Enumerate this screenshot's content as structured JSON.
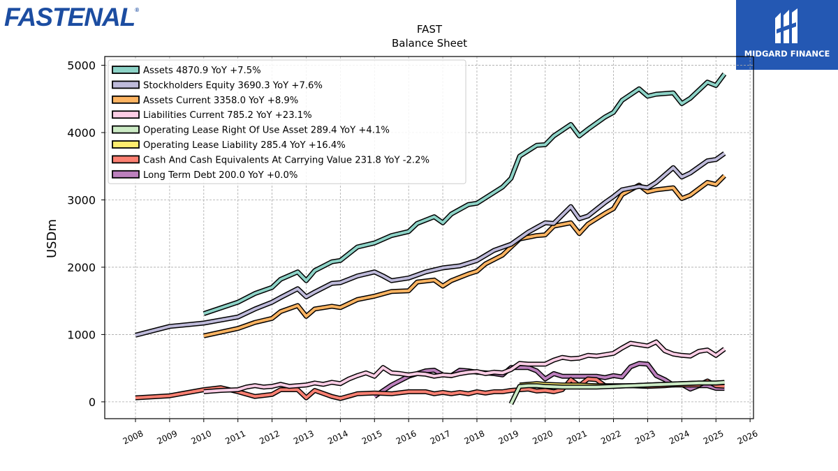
{
  "logos": {
    "left_text": "FASTENAL",
    "right_text": "MIDGARD FINANCE"
  },
  "chart_data": {
    "type": "line",
    "title": "FAST",
    "subtitle": "Balance  Sheet",
    "ylabel": "USDm",
    "xlabel": "",
    "xlim": [
      2007.1,
      2026.1
    ],
    "ylim": [
      -250,
      5130
    ],
    "yticks": [
      0,
      1000,
      2000,
      3000,
      4000,
      5000
    ],
    "xticks": [
      2008,
      2009,
      2010,
      2011,
      2012,
      2013,
      2014,
      2015,
      2016,
      2017,
      2018,
      2019,
      2020,
      2021,
      2022,
      2023,
      2024,
      2025,
      2026
    ],
    "grid": true,
    "legend_position": "top-left",
    "series": [
      {
        "name": "Assets",
        "legend": "Assets  4870.9 YoY +7.5%",
        "color": "#8dd3c7",
        "x": [
          2010.0,
          2011.0,
          2011.5,
          2012.0,
          2012.25,
          2012.75,
          2013.0,
          2013.25,
          2013.75,
          2014.0,
          2014.5,
          2015.0,
          2015.5,
          2016.0,
          2016.25,
          2016.75,
          2017.0,
          2017.25,
          2017.75,
          2018.0,
          2018.25,
          2018.75,
          2019.0,
          2019.25,
          2019.75,
          2020.0,
          2020.25,
          2020.75,
          2021.0,
          2021.25,
          2021.75,
          2022.0,
          2022.25,
          2022.75,
          2023.0,
          2023.25,
          2023.75,
          2024.0,
          2024.25,
          2024.75,
          2025.0,
          2025.25
        ],
        "values": [
          1310,
          1480,
          1610,
          1700,
          1820,
          1930,
          1800,
          1950,
          2080,
          2100,
          2300,
          2360,
          2470,
          2530,
          2650,
          2750,
          2660,
          2790,
          2930,
          2950,
          3030,
          3190,
          3320,
          3650,
          3810,
          3820,
          3950,
          4120,
          3950,
          4050,
          4230,
          4300,
          4480,
          4650,
          4540,
          4570,
          4590,
          4430,
          4510,
          4750,
          4700,
          4871
        ]
      },
      {
        "name": "Stockholders Equity",
        "legend": "Stockholders Equity  3690.3 YoY +7.6%",
        "color": "#bebada",
        "x": [
          2008.0,
          2009.0,
          2010.0,
          2011.0,
          2011.5,
          2012.0,
          2012.25,
          2012.75,
          2013.0,
          2013.25,
          2013.75,
          2014.0,
          2014.5,
          2015.0,
          2015.25,
          2015.5,
          2016.0,
          2016.5,
          2017.0,
          2017.5,
          2018.0,
          2018.5,
          2019.0,
          2019.5,
          2020.0,
          2020.25,
          2020.75,
          2021.0,
          2021.25,
          2021.75,
          2022.0,
          2022.25,
          2022.75,
          2023.0,
          2023.25,
          2023.75,
          2024.0,
          2024.25,
          2024.75,
          2025.0,
          2025.25
        ],
        "values": [
          990,
          1120,
          1170,
          1260,
          1380,
          1480,
          1550,
          1680,
          1560,
          1630,
          1760,
          1770,
          1870,
          1930,
          1870,
          1800,
          1840,
          1930,
          1990,
          2020,
          2100,
          2250,
          2340,
          2520,
          2660,
          2650,
          2900,
          2720,
          2760,
          2960,
          3050,
          3150,
          3200,
          3180,
          3260,
          3480,
          3340,
          3400,
          3580,
          3600,
          3690
        ]
      },
      {
        "name": "Assets Current",
        "legend": "Assets Current  3358.0 YoY +8.9%",
        "color": "#fdb462",
        "x": [
          2010.0,
          2011.0,
          2011.5,
          2012.0,
          2012.25,
          2012.75,
          2013.0,
          2013.25,
          2013.75,
          2014.0,
          2014.5,
          2015.0,
          2015.5,
          2016.0,
          2016.25,
          2016.75,
          2017.0,
          2017.25,
          2017.75,
          2018.0,
          2018.25,
          2018.75,
          2019.0,
          2019.25,
          2019.75,
          2020.0,
          2020.25,
          2020.75,
          2021.0,
          2021.25,
          2021.75,
          2022.0,
          2022.25,
          2022.75,
          2023.0,
          2023.25,
          2023.75,
          2024.0,
          2024.25,
          2024.75,
          2025.0,
          2025.25
        ],
        "values": [
          980,
          1090,
          1180,
          1240,
          1340,
          1430,
          1270,
          1380,
          1420,
          1400,
          1520,
          1570,
          1640,
          1650,
          1780,
          1810,
          1720,
          1800,
          1900,
          1940,
          2050,
          2180,
          2300,
          2420,
          2470,
          2480,
          2610,
          2660,
          2500,
          2640,
          2800,
          2870,
          3080,
          3220,
          3120,
          3150,
          3180,
          3020,
          3070,
          3260,
          3230,
          3358
        ]
      },
      {
        "name": "Liabilities Current",
        "legend": "Liabilities Current  785.2 YoY +23.1%",
        "color": "#fccde5",
        "x": [
          2010.0,
          2010.5,
          2011.0,
          2011.25,
          2011.5,
          2011.75,
          2012.0,
          2012.25,
          2012.5,
          2012.75,
          2013.0,
          2013.25,
          2013.5,
          2013.75,
          2014.0,
          2014.25,
          2014.5,
          2014.75,
          2015.0,
          2015.25,
          2015.5,
          2015.75,
          2016.0,
          2016.25,
          2016.5,
          2016.75,
          2017.0,
          2017.25,
          2017.5,
          2017.75,
          2018.0,
          2018.25,
          2018.5,
          2018.75,
          2019.0,
          2019.25,
          2019.5,
          2019.75,
          2020.0,
          2020.25,
          2020.5,
          2020.75,
          2021.0,
          2021.25,
          2021.5,
          2021.75,
          2022.0,
          2022.25,
          2022.5,
          2022.75,
          2023.0,
          2023.25,
          2023.5,
          2023.75,
          2024.0,
          2024.25,
          2024.5,
          2024.75,
          2025.0,
          2025.25
        ],
        "values": [
          150,
          170,
          180,
          220,
          240,
          220,
          230,
          260,
          230,
          240,
          250,
          280,
          260,
          290,
          270,
          340,
          390,
          430,
          380,
          510,
          430,
          420,
          400,
          420,
          410,
          380,
          400,
          390,
          420,
          440,
          450,
          420,
          440,
          430,
          480,
          570,
          560,
          560,
          560,
          620,
          660,
          640,
          650,
          690,
          680,
          700,
          720,
          800,
          870,
          850,
          830,
          890,
          760,
          710,
          690,
          680,
          750,
          770,
          690,
          785
        ]
      },
      {
        "name": "Operating Lease Right Of Use Asset",
        "legend": "Operating Lease Right Of Use Asset  289.4 YoY +4.1%",
        "color": "#ccebc5",
        "x": [
          2019.0,
          2019.25,
          2019.5,
          2019.75,
          2020.0,
          2020.5,
          2021.0,
          2021.5,
          2022.0,
          2022.5,
          2023.0,
          2023.5,
          2024.0,
          2024.5,
          2025.0,
          2025.25
        ],
        "values": [
          -30,
          230,
          240,
          240,
          230,
          220,
          220,
          220,
          230,
          240,
          250,
          260,
          270,
          280,
          280,
          289
        ]
      },
      {
        "name": "Operating Lease Liability",
        "legend": "Operating Lease Liability  285.4 YoY +16.4%",
        "color": "#ffed6f",
        "x": [
          2019.25,
          2019.5,
          2019.75,
          2020.0,
          2020.5,
          2021.0,
          2021.5,
          2022.0,
          2022.5,
          2023.0,
          2023.5,
          2024.0,
          2024.5,
          2025.0,
          2025.25
        ],
        "values": [
          250,
          260,
          270,
          260,
          250,
          250,
          240,
          240,
          240,
          250,
          260,
          270,
          280,
          280,
          285
        ]
      },
      {
        "name": "Cash And Cash Equivalents At Carrying Value",
        "legend": "Cash And Cash Equivalents At Carrying Value  231.8 YoY -2.2%",
        "color": "#fb8072",
        "x": [
          2008.0,
          2009.0,
          2010.0,
          2010.5,
          2011.0,
          2011.5,
          2012.0,
          2012.25,
          2012.75,
          2013.0,
          2013.25,
          2013.75,
          2014.0,
          2014.5,
          2015.0,
          2015.5,
          2016.0,
          2016.5,
          2016.75,
          2017.0,
          2017.25,
          2017.5,
          2017.75,
          2018.0,
          2018.25,
          2018.5,
          2018.75,
          2019.0,
          2019.5,
          2019.75,
          2020.0,
          2020.25,
          2020.5,
          2020.75,
          2021.0,
          2021.25,
          2021.5,
          2021.75,
          2022.0,
          2022.5,
          2023.0,
          2023.5,
          2023.75,
          2024.0,
          2024.5,
          2024.75,
          2025.0,
          2025.25
        ],
        "values": [
          60,
          90,
          180,
          210,
          150,
          80,
          110,
          180,
          180,
          60,
          170,
          80,
          50,
          120,
          130,
          120,
          150,
          150,
          120,
          140,
          120,
          140,
          120,
          150,
          130,
          150,
          150,
          170,
          190,
          160,
          170,
          150,
          180,
          330,
          240,
          340,
          330,
          240,
          230,
          240,
          230,
          240,
          250,
          250,
          250,
          310,
          240,
          232
        ]
      },
      {
        "name": "Long Term Debt",
        "legend": "Long Term Debt  200.0 YoY +0.0%",
        "color": "#bc80bd",
        "x": [
          2015.0,
          2015.5,
          2016.0,
          2016.25,
          2016.5,
          2016.75,
          2017.0,
          2017.25,
          2017.5,
          2017.75,
          2018.0,
          2018.25,
          2018.5,
          2018.75,
          2019.0,
          2019.25,
          2019.5,
          2019.75,
          2020.0,
          2020.25,
          2020.5,
          2020.75,
          2021.0,
          2021.25,
          2021.5,
          2021.75,
          2022.0,
          2022.25,
          2022.5,
          2022.75,
          2023.0,
          2023.25,
          2023.5,
          2023.75,
          2024.0,
          2024.25,
          2024.5,
          2024.75,
          2025.0,
          2025.25
        ],
        "values": [
          80,
          250,
          380,
          420,
          460,
          470,
          400,
          390,
          470,
          460,
          440,
          430,
          420,
          400,
          510,
          510,
          510,
          460,
          340,
          420,
          380,
          380,
          380,
          380,
          380,
          360,
          390,
          370,
          520,
          570,
          560,
          390,
          330,
          250,
          260,
          190,
          240,
          240,
          200,
          200
        ]
      }
    ]
  }
}
